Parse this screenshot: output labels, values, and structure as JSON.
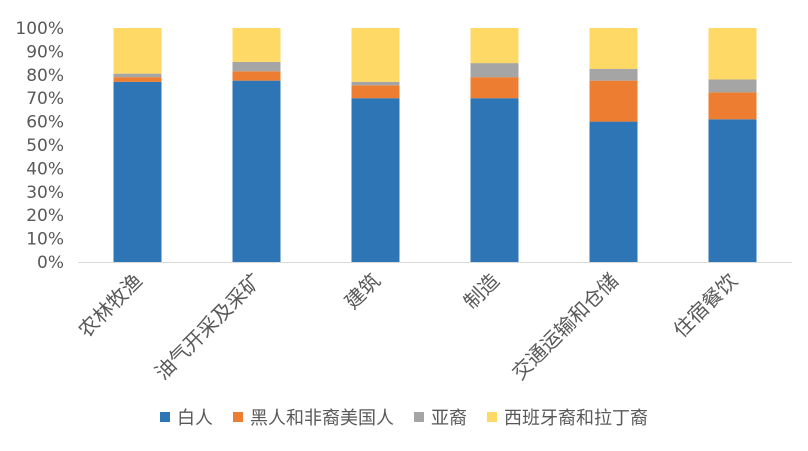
{
  "chart_data": {
    "type": "bar",
    "stacked": true,
    "percent_axis": true,
    "title": "",
    "xlabel": "",
    "ylabel": "",
    "ylim": [
      0,
      100
    ],
    "y_ticks": [
      "0%",
      "10%",
      "20%",
      "30%",
      "40%",
      "50%",
      "60%",
      "70%",
      "80%",
      "90%",
      "100%"
    ],
    "grid": false,
    "legend_position": "bottom",
    "categories": [
      "农林牧渔",
      "油气开采及采矿",
      "建筑",
      "制造",
      "交通运输和仓储",
      "住宿餐饮"
    ],
    "series": [
      {
        "name": "白人",
        "color": "#2E75B6",
        "values": [
          77,
          77.5,
          70,
          70,
          60,
          61
        ]
      },
      {
        "name": "黑人和非裔美国人",
        "color": "#ED7D31",
        "values": [
          2,
          4,
          5.5,
          9,
          17.5,
          11.5
        ]
      },
      {
        "name": "亚裔",
        "color": "#A5A5A5",
        "values": [
          1.5,
          4,
          1.5,
          6,
          5,
          5.5
        ]
      },
      {
        "name": "西班牙裔和拉丁裔",
        "color": "#FFD966",
        "values": [
          19.5,
          14.5,
          23,
          15,
          17.5,
          22
        ]
      }
    ]
  }
}
